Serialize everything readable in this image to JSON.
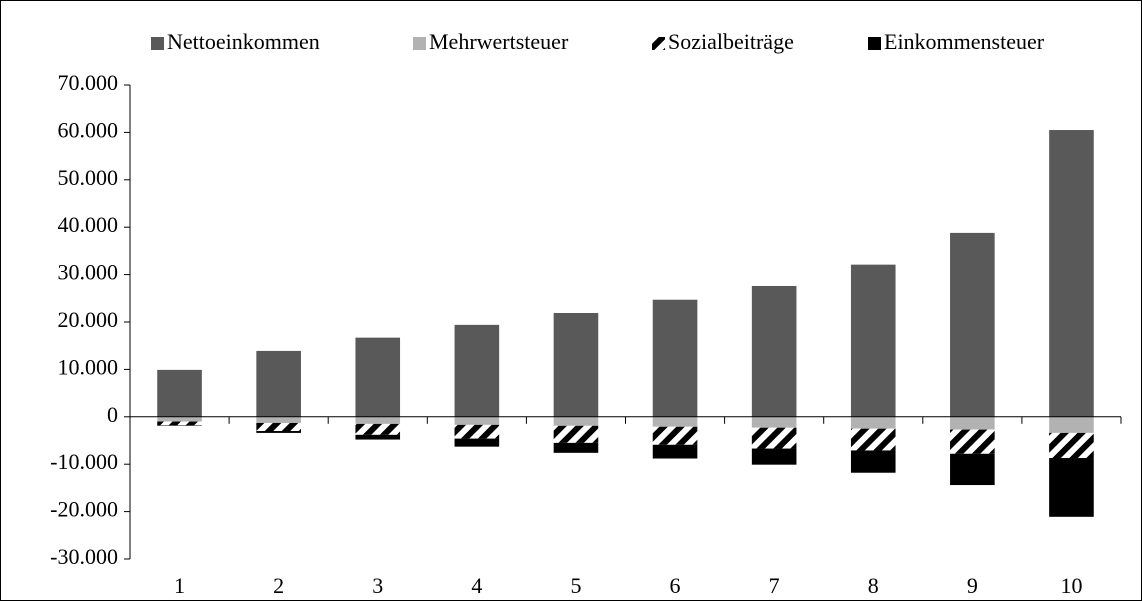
{
  "chart_data": {
    "type": "stacked_bar",
    "categories": [
      "1",
      "2",
      "3",
      "4",
      "5",
      "6",
      "7",
      "8",
      "9",
      "10"
    ],
    "series": [
      {
        "name": "Nettoeinkommen",
        "color": "#595959",
        "values": [
          9900,
          13900,
          16700,
          19400,
          21900,
          24700,
          27600,
          32100,
          38800,
          60500
        ]
      },
      {
        "name": "Mehrwertsteuer",
        "color": "#b2b2b2",
        "values": [
          -1000,
          -1300,
          -1500,
          -1700,
          -1900,
          -2100,
          -2300,
          -2500,
          -2700,
          -3400
        ]
      },
      {
        "name": "Sozialbeiträge",
        "color": "#000000",
        "pattern": "diagonal",
        "values": [
          -800,
          -1700,
          -2300,
          -2900,
          -3600,
          -3800,
          -4400,
          -4600,
          -5100,
          -5300
        ]
      },
      {
        "name": "Einkommensteuer",
        "color": "#000000",
        "values": [
          -100,
          -400,
          -1000,
          -1700,
          -2100,
          -2900,
          -3400,
          -4700,
          -6600,
          -12400
        ]
      }
    ],
    "ylim": [
      -30000,
      70000
    ],
    "yticks": [
      {
        "value": -30000,
        "label": "-30.000"
      },
      {
        "value": -20000,
        "label": "-20.000"
      },
      {
        "value": -10000,
        "label": "-10.000"
      },
      0,
      {
        "value": 10000,
        "label": "10.000"
      },
      {
        "value": 20000,
        "label": "20.000"
      },
      {
        "value": 30000,
        "label": "30.000"
      },
      {
        "value": 40000,
        "label": "40.000"
      },
      {
        "value": 50000,
        "label": "50.000"
      },
      {
        "value": 60000,
        "label": "60.000"
      },
      {
        "value": 70000,
        "label": "70.000"
      }
    ],
    "legend": "top"
  }
}
